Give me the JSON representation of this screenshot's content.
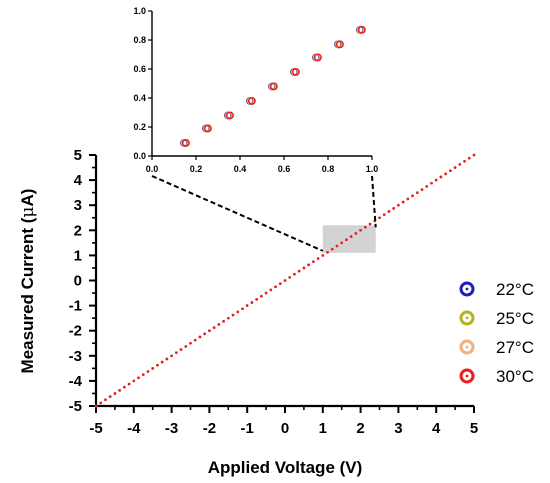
{
  "chart_data": [
    {
      "type": "scatter",
      "title": "",
      "xlabel": "Applied Voltage (V)",
      "ylabel": "Measured Current (",
      "ylabel_symbol": "μ",
      "ylabel_tail": "A)",
      "xlim": [
        -5,
        5
      ],
      "ylim": [
        -5,
        5
      ],
      "xticks": [
        "-5",
        "-4",
        "-3",
        "-2",
        "-1",
        "0",
        "1",
        "2",
        "3",
        "4",
        "5"
      ],
      "yticks": [
        "5",
        "4",
        "3",
        "2",
        "1",
        "0",
        "-1",
        "-2",
        "-3",
        "-4",
        "-5"
      ],
      "grid": false,
      "legend_position": "right",
      "series": [
        {
          "name": "22°C",
          "color": "#1f1fb4",
          "x": [
            -5,
            5
          ],
          "y": [
            -5,
            5
          ]
        },
        {
          "name": "25°C",
          "color": "#b4b41a",
          "x": [
            -5,
            5
          ],
          "y": [
            -5,
            5
          ]
        },
        {
          "name": "27°C",
          "color": "#f2b07a",
          "x": [
            -5,
            5
          ],
          "y": [
            -5,
            5
          ]
        },
        {
          "name": "30°C",
          "color": "#ee1c1c",
          "x": [
            -5,
            5
          ],
          "y": [
            -5,
            5
          ]
        }
      ],
      "highlight_region": {
        "x": [
          1,
          2.4
        ],
        "y": [
          1.1,
          2.2
        ]
      }
    },
    {
      "type": "scatter",
      "role": "inset",
      "xlim": [
        0,
        1
      ],
      "ylim": [
        0,
        1
      ],
      "xticks": [
        "0.0",
        "0.2",
        "0.4",
        "0.6",
        "0.8",
        "1.0"
      ],
      "yticks": [
        "1.0",
        "0.8",
        "0.6",
        "0.4",
        "0.2",
        "0.0"
      ],
      "x": [
        0.15,
        0.25,
        0.35,
        0.45,
        0.55,
        0.65,
        0.75,
        0.85,
        0.95
      ],
      "y": [
        0.09,
        0.19,
        0.28,
        0.38,
        0.48,
        0.58,
        0.68,
        0.77,
        0.87
      ]
    }
  ]
}
